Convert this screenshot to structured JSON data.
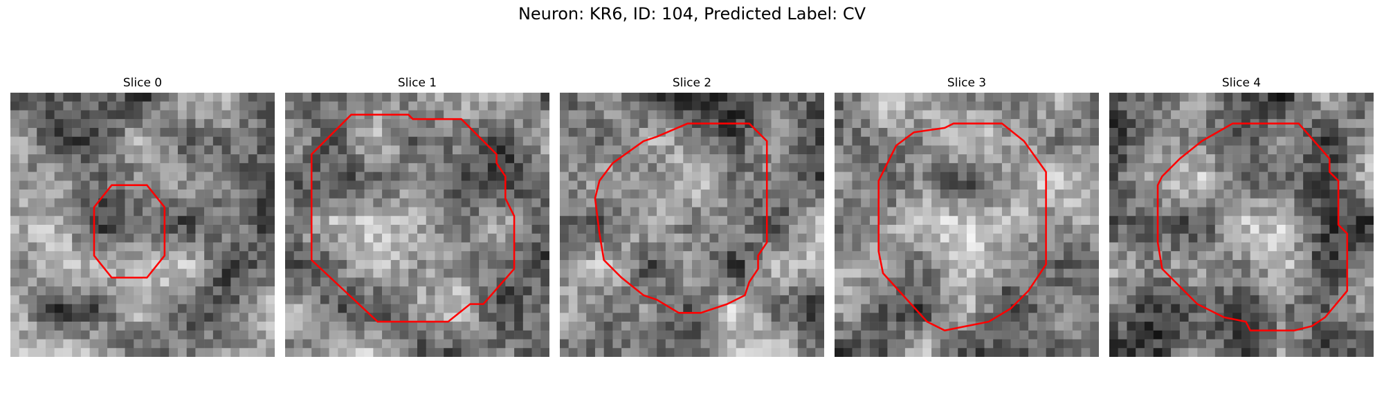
{
  "figure": {
    "title": "Neuron: KR6, ID: 104, Predicted Label: CV"
  },
  "contour_color": "#ff0000",
  "slices": [
    {
      "title": "Slice 0",
      "seed": 11
    },
    {
      "title": "Slice 1",
      "seed": 23
    },
    {
      "title": "Slice 2",
      "seed": 37
    },
    {
      "title": "Slice 3",
      "seed": 51
    },
    {
      "title": "Slice 4",
      "seed": 67
    }
  ]
}
